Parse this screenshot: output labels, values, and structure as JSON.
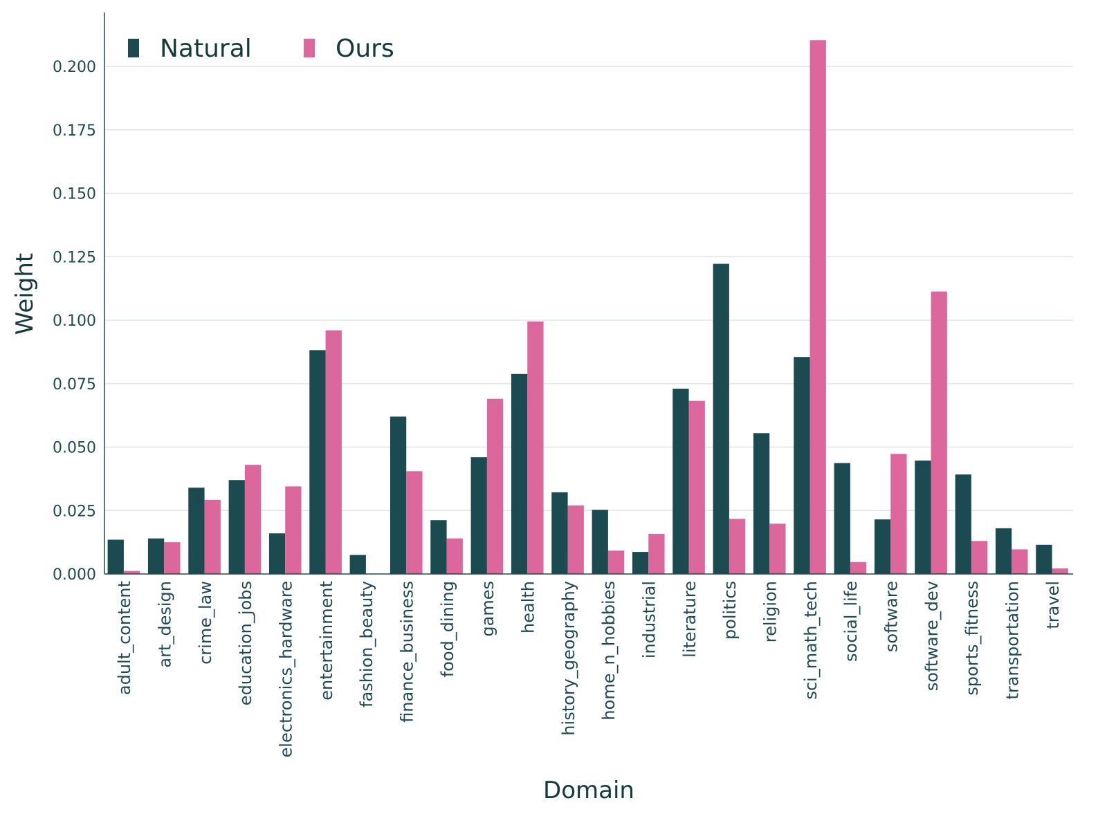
{
  "chart_data": {
    "type": "bar",
    "xlabel": "Domain",
    "ylabel": "Weight",
    "ylim": [
      0,
      0.22
    ],
    "yticks": [
      "0.000",
      "0.025",
      "0.050",
      "0.075",
      "0.100",
      "0.125",
      "0.150",
      "0.175",
      "0.200"
    ],
    "grid": "horizontal",
    "legend_position": "top-left",
    "categories": [
      "adult_content",
      "art_design",
      "crime_law",
      "education_jobs",
      "electronics_hardware",
      "entertainment",
      "fashion_beauty",
      "finance_business",
      "food_dining",
      "games",
      "health",
      "history_geography",
      "home_n_hobbies",
      "industrial",
      "literature",
      "politics",
      "religion",
      "sci_math_tech",
      "social_life",
      "software",
      "software_dev",
      "sports_fitness",
      "transportation",
      "travel"
    ],
    "series": [
      {
        "name": "Natural",
        "color": "#1b4a50",
        "values": [
          0.0135,
          0.014,
          0.034,
          0.037,
          0.016,
          0.0882,
          0.0075,
          0.062,
          0.0212,
          0.046,
          0.0788,
          0.0322,
          0.0253,
          0.0087,
          0.073,
          0.1222,
          0.0555,
          0.0855,
          0.0437,
          0.0215,
          0.0447,
          0.0392,
          0.018,
          0.0115
        ]
      },
      {
        "name": "Ours",
        "color": "#dc679d",
        "values": [
          0.0012,
          0.0125,
          0.0292,
          0.043,
          0.0345,
          0.096,
          0.0,
          0.0405,
          0.014,
          0.069,
          0.0995,
          0.027,
          0.0092,
          0.0158,
          0.0682,
          0.0217,
          0.0198,
          0.2103,
          0.0047,
          0.0473,
          0.1113,
          0.013,
          0.0097,
          0.0022
        ]
      }
    ]
  }
}
